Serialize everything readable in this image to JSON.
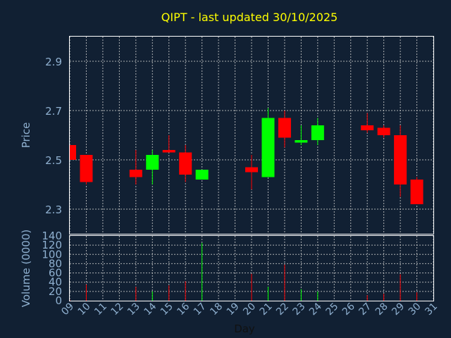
{
  "chart_data": [
    {
      "type": "candlestick",
      "title": "QIPT - last updated 30/10/2025",
      "ylabel": "Price",
      "ylim": [
        2.2,
        3.0
      ],
      "yticks": [
        "2.3",
        "2.5",
        "2.7",
        "2.9"
      ],
      "grid": true,
      "colors": {
        "up": "#00ff00",
        "down": "#ff0000",
        "title": "#ffff00",
        "axis_text": "#8fb0d0",
        "frame": "#ffffff",
        "background": "#112033"
      },
      "candles": [
        {
          "day": 9,
          "open": 2.56,
          "high": 2.56,
          "low": 2.5,
          "close": 2.5
        },
        {
          "day": 10,
          "open": 2.52,
          "high": 2.52,
          "low": 2.4,
          "close": 2.41
        },
        {
          "day": 13,
          "open": 2.46,
          "high": 2.54,
          "low": 2.4,
          "close": 2.43
        },
        {
          "day": 14,
          "open": 2.46,
          "high": 2.54,
          "low": 2.4,
          "close": 2.52
        },
        {
          "day": 15,
          "open": 2.54,
          "high": 2.6,
          "low": 2.53,
          "close": 2.53
        },
        {
          "day": 16,
          "open": 2.53,
          "high": 2.56,
          "low": 2.41,
          "close": 2.44
        },
        {
          "day": 17,
          "open": 2.42,
          "high": 2.46,
          "low": 2.42,
          "close": 2.46
        },
        {
          "day": 20,
          "open": 2.47,
          "high": 2.52,
          "low": 2.38,
          "close": 2.45
        },
        {
          "day": 21,
          "open": 2.43,
          "high": 2.71,
          "low": 2.43,
          "close": 2.67
        },
        {
          "day": 22,
          "open": 2.67,
          "high": 2.7,
          "low": 2.55,
          "close": 2.59
        },
        {
          "day": 23,
          "open": 2.57,
          "high": 2.64,
          "low": 2.56,
          "close": 2.58
        },
        {
          "day": 24,
          "open": 2.58,
          "high": 2.67,
          "low": 2.56,
          "close": 2.64
        },
        {
          "day": 27,
          "open": 2.64,
          "high": 2.69,
          "low": 2.61,
          "close": 2.62
        },
        {
          "day": 28,
          "open": 2.63,
          "high": 2.64,
          "low": 2.59,
          "close": 2.6
        },
        {
          "day": 29,
          "open": 2.6,
          "high": 2.64,
          "low": 2.35,
          "close": 2.4
        },
        {
          "day": 30,
          "open": 2.42,
          "high": 2.43,
          "low": 2.32,
          "close": 2.32
        }
      ]
    },
    {
      "type": "bar",
      "ylabel": "Volume (0000)",
      "xlabel": "Day",
      "ylim": [
        0,
        140
      ],
      "yticks": [
        "0",
        "20",
        "40",
        "60",
        "80",
        "100",
        "120",
        "140"
      ],
      "xticks": [
        "09",
        "10",
        "11",
        "12",
        "13",
        "14",
        "15",
        "16",
        "17",
        "18",
        "19",
        "20",
        "21",
        "22",
        "23",
        "24",
        "25",
        "26",
        "27",
        "28",
        "29",
        "30",
        "31"
      ],
      "grid": true,
      "volumes": [
        {
          "day": 9,
          "value": 2,
          "dir": "down"
        },
        {
          "day": 10,
          "value": 35,
          "dir": "down"
        },
        {
          "day": 13,
          "value": 30,
          "dir": "down"
        },
        {
          "day": 14,
          "value": 20,
          "dir": "up"
        },
        {
          "day": 15,
          "value": 33,
          "dir": "down"
        },
        {
          "day": 16,
          "value": 42,
          "dir": "down"
        },
        {
          "day": 17,
          "value": 125,
          "dir": "up"
        },
        {
          "day": 20,
          "value": 58,
          "dir": "down"
        },
        {
          "day": 21,
          "value": 30,
          "dir": "up"
        },
        {
          "day": 22,
          "value": 78,
          "dir": "down"
        },
        {
          "day": 23,
          "value": 25,
          "dir": "up"
        },
        {
          "day": 24,
          "value": 20,
          "dir": "up"
        },
        {
          "day": 27,
          "value": 12,
          "dir": "down"
        },
        {
          "day": 28,
          "value": 15,
          "dir": "down"
        },
        {
          "day": 29,
          "value": 57,
          "dir": "down"
        },
        {
          "day": 30,
          "value": 18,
          "dir": "down"
        }
      ]
    }
  ]
}
